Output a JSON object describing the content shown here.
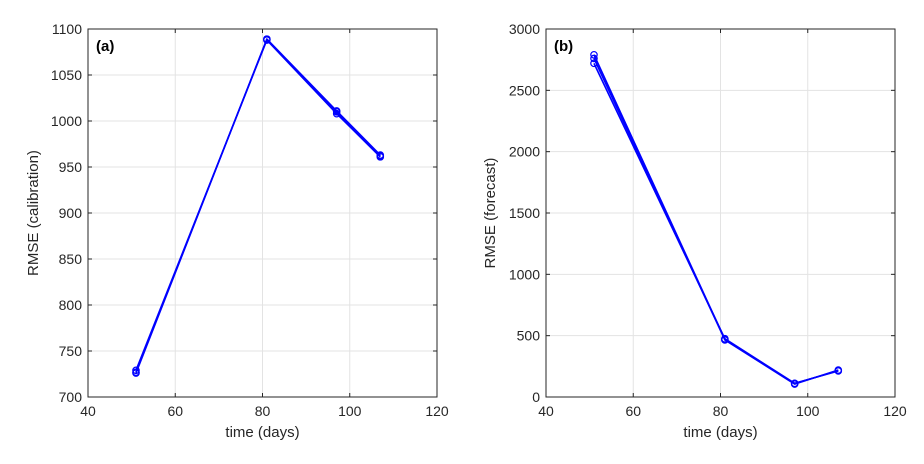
{
  "colors": {
    "series": "#0000ff"
  },
  "chart_data": [
    {
      "type": "line",
      "panel_label": "(a)",
      "xlabel": "time (days)",
      "ylabel": "RMSE (calibration)",
      "xlim": [
        40,
        120
      ],
      "ylim": [
        700,
        1100
      ],
      "xticks": [
        "40",
        "60",
        "80",
        "100",
        "120"
      ],
      "yticks": [
        "700",
        "750",
        "800",
        "850",
        "900",
        "950",
        "1000",
        "1050",
        "1100"
      ],
      "grid": true,
      "marker": "circle",
      "series": [
        {
          "x": [
            51,
            81,
            97,
            107
          ],
          "y": [
            727,
            1089,
            1010,
            962
          ]
        },
        {
          "x": [
            51,
            81,
            97,
            107
          ],
          "y": [
            729,
            1088,
            1008,
            961
          ]
        },
        {
          "x": [
            51,
            81,
            97,
            107
          ],
          "y": [
            726,
            1089,
            1011,
            963
          ]
        }
      ]
    },
    {
      "type": "line",
      "panel_label": "(b)",
      "xlabel": "time (days)",
      "ylabel": "RMSE (forecast)",
      "xlim": [
        40,
        120
      ],
      "ylim": [
        0,
        3000
      ],
      "xticks": [
        "40",
        "60",
        "80",
        "100",
        "120"
      ],
      "yticks": [
        "0",
        "500",
        "1000",
        "1500",
        "2000",
        "2500",
        "3000"
      ],
      "grid": true,
      "marker": "circle",
      "series": [
        {
          "x": [
            51,
            81,
            97,
            107
          ],
          "y": [
            2790,
            470,
            110,
            215
          ]
        },
        {
          "x": [
            51,
            81,
            97,
            107
          ],
          "y": [
            2760,
            465,
            105,
            220
          ]
        },
        {
          "x": [
            51,
            81,
            97,
            107
          ],
          "y": [
            2720,
            475,
            112,
            212
          ]
        }
      ]
    }
  ]
}
